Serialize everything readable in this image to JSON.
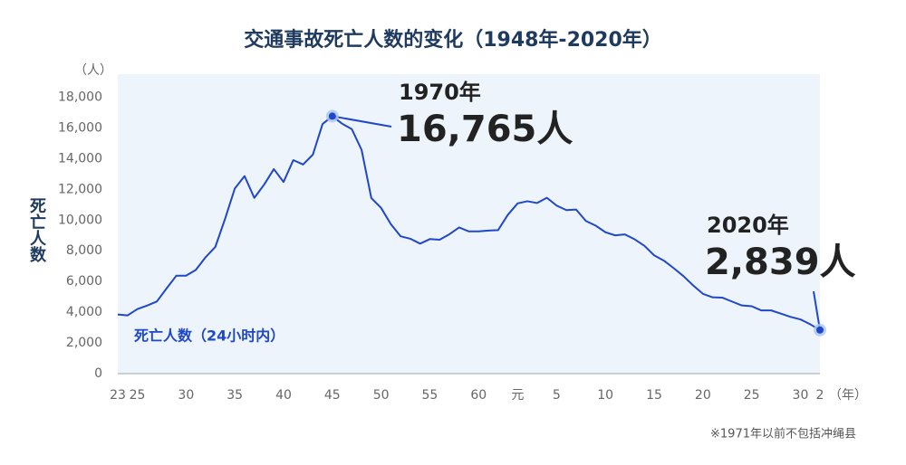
{
  "chart_data": {
    "type": "line",
    "title": "交通事故死亡人数的变化（1948年-2020年）",
    "y_label": "死亡人数",
    "y_unit": "（人）",
    "x_unit": "（年）",
    "footnote": "※1971年以前不包括冲绳县",
    "x": [
      1948,
      1949,
      1950,
      1951,
      1952,
      1953,
      1954,
      1955,
      1956,
      1957,
      1958,
      1959,
      1960,
      1961,
      1962,
      1963,
      1964,
      1965,
      1966,
      1967,
      1968,
      1969,
      1970,
      1971,
      1972,
      1973,
      1974,
      1975,
      1976,
      1977,
      1978,
      1979,
      1980,
      1981,
      1982,
      1983,
      1984,
      1985,
      1986,
      1987,
      1988,
      1989,
      1990,
      1991,
      1992,
      1993,
      1994,
      1995,
      1996,
      1997,
      1998,
      1999,
      2000,
      2001,
      2002,
      2003,
      2004,
      2005,
      2006,
      2007,
      2008,
      2009,
      2010,
      2011,
      2012,
      2013,
      2014,
      2015,
      2016,
      2017,
      2018,
      2019,
      2020
    ],
    "series": [
      {
        "name": "死亡人数（24小时内）",
        "color": "#1f47c9",
        "values": [
          3848,
          3790,
          4202,
          4429,
          4696,
          5544,
          6374,
          6379,
          6751,
          7575,
          8248,
          10079,
          12055,
          12865,
          11445,
          12301,
          13318,
          12484,
          13904,
          13618,
          14256,
          16257,
          16765,
          16278,
          15918,
          14574,
          11432,
          10792,
          9734,
          8945,
          8783,
          8466,
          8760,
          8719,
          9073,
          9520,
          9262,
          9261,
          9317,
          9347,
          10344,
          11086,
          11227,
          11109,
          11452,
          10942,
          10649,
          10684,
          9942,
          9640,
          9211,
          9006,
          9066,
          8747,
          8326,
          7702,
          7358,
          6871,
          6352,
          5744,
          5197,
          4968,
          4948,
          4691,
          4438,
          4388,
          4113,
          4117,
          3904,
          3694,
          3532,
          3215,
          2839
        ]
      }
    ],
    "xlim": [
      1948,
      2020
    ],
    "xticks": [
      {
        "value": 1948,
        "label": "23"
      },
      {
        "value": 1950,
        "label": "25"
      },
      {
        "value": 1955,
        "label": "30"
      },
      {
        "value": 1960,
        "label": "35"
      },
      {
        "value": 1965,
        "label": "40"
      },
      {
        "value": 1970,
        "label": "45"
      },
      {
        "value": 1975,
        "label": "50"
      },
      {
        "value": 1980,
        "label": "55"
      },
      {
        "value": 1985,
        "label": "60"
      },
      {
        "value": 1989,
        "label": "元"
      },
      {
        "value": 1993,
        "label": "5"
      },
      {
        "value": 1998,
        "label": "10"
      },
      {
        "value": 2003,
        "label": "15"
      },
      {
        "value": 2008,
        "label": "20"
      },
      {
        "value": 2013,
        "label": "25"
      },
      {
        "value": 2018,
        "label": "30"
      },
      {
        "value": 2020,
        "label": "2"
      }
    ],
    "ylim": [
      0,
      19500
    ],
    "yticks": [
      0,
      {
        "value": 2000,
        "label": "2,000"
      },
      {
        "value": 4000,
        "label": "4,000"
      },
      {
        "value": 6000,
        "label": "6,000"
      },
      {
        "value": 8000,
        "label": "8,000"
      },
      {
        "value": 10000,
        "label": "10,000"
      },
      {
        "value": 12000,
        "label": "12,000"
      },
      {
        "value": 14000,
        "label": "14,000"
      },
      {
        "value": 16000,
        "label": "16,000"
      },
      {
        "value": 18000,
        "label": "18,000"
      }
    ],
    "grid": false,
    "annotations": [
      {
        "x": 1970,
        "year_label": "1970年",
        "label": "16,765人"
      },
      {
        "x": 2020,
        "year_label": "2020年",
        "label": "2,839人"
      }
    ]
  }
}
